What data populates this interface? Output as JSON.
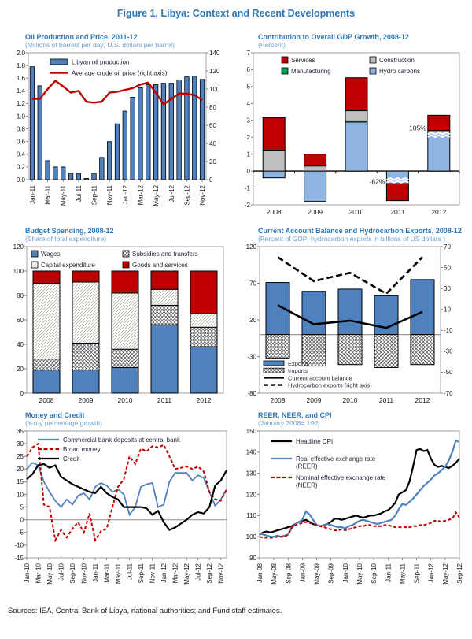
{
  "page": {
    "title": "Figure 1. Libya: Context and Recent Developments",
    "source_note": "Sources: IEA, Central Bank of Libya, national authorities; and Fund staff estimates."
  },
  "colors": {
    "title_blue": "#2E75B6",
    "subtitle_blue": "#6FA0D0",
    "steel_blue": "#4E81BD",
    "light_blue": "#8EB4E3",
    "red": "#C00000",
    "gray": "#BFBFBF",
    "green": "#00A550",
    "frame_gray": "#A6A6A6"
  },
  "chart_data": [
    {
      "id": "oil",
      "type": "bar-line",
      "title": "Oil Production and Price, 2011-12",
      "subtitle": "(Millions of barrels per day; U.S. dollars per barrel)",
      "n_points": 23,
      "tick_every": 2,
      "x_tick_labels": [
        "Jan-11",
        "Mar-11",
        "May-11",
        "Jul-11",
        "Sep-11",
        "Nov-11",
        "Jan-12",
        "Mar-12",
        "May-12",
        "Jul-12",
        "Sep-12",
        "Nov-12"
      ],
      "bars": {
        "name": "Libyan oil production",
        "values": [
          1.78,
          1.48,
          0.3,
          0.2,
          0.2,
          0.1,
          0.1,
          0.02,
          0.1,
          0.35,
          0.6,
          0.88,
          1.08,
          1.3,
          1.45,
          1.5,
          1.5,
          1.52,
          1.52,
          1.57,
          1.62,
          1.63,
          1.58
        ]
      },
      "line": {
        "name": "Average crude oil price (right axis)",
        "axis": "right",
        "values": [
          89,
          89,
          100,
          109,
          103,
          96,
          98,
          86,
          85,
          86,
          96,
          97,
          99,
          101,
          105,
          107,
          96,
          83,
          89,
          95,
          95,
          93,
          88
        ]
      },
      "left_axis": {
        "min": 0,
        "max": 2,
        "step": 0.2,
        "dec": 1
      },
      "right_axis": {
        "min": 0,
        "max": 140,
        "step": 20,
        "dec": 0
      }
    },
    {
      "id": "gdp",
      "type": "stacked-bar",
      "title": "Contribution to Overall GDP Growth, 2008-12",
      "subtitle": "(Percent)",
      "categories": [
        "2008",
        "2009",
        "2010",
        "2011",
        "2012"
      ],
      "series": [
        {
          "name": "Hydro carbons",
          "style": "#8EB4E3",
          "values": [
            -0.4,
            -1.8,
            2.9,
            -0.75,
            2.4
          ]
        },
        {
          "name": "Manufacturing",
          "style": "#00A550",
          "values": [
            0,
            0,
            0.07,
            0,
            0
          ]
        },
        {
          "name": "Construction",
          "style": "#BFBFBF",
          "values": [
            1.2,
            0.3,
            0.6,
            0,
            0
          ]
        },
        {
          "name": "Services",
          "style": "#C00000",
          "values": [
            1.95,
            0.7,
            1.95,
            -1.0,
            0.9
          ]
        }
      ],
      "annotations": [
        {
          "ci": 3,
          "y": -0.62,
          "text": "-62%"
        },
        {
          "ci": 4,
          "y": 2.55,
          "text": "105%"
        }
      ],
      "breaks": [
        {
          "ci": 3,
          "y": -0.52
        },
        {
          "ci": 4,
          "y": 2.18
        }
      ],
      "y_axis": {
        "min": -2,
        "max": 7,
        "step": 1,
        "dec": 0
      }
    },
    {
      "id": "budget",
      "type": "stacked-bar",
      "title": "Budget Spending, 2008-12",
      "subtitle": "(Share of total expenditure)",
      "categories": [
        "2008",
        "2009",
        "2010",
        "2011",
        "2012"
      ],
      "series": [
        {
          "name": "Wages",
          "style": "solid-blue",
          "values": [
            19,
            19,
            21,
            56,
            38
          ]
        },
        {
          "name": "Subsidies and transfers",
          "style": "crosshatch",
          "values": [
            9,
            22,
            15,
            16,
            16
          ]
        },
        {
          "name": "Capital expenditure",
          "style": "light-hatch",
          "values": [
            62,
            50,
            46,
            13,
            11
          ]
        },
        {
          "name": "Goods and services",
          "style": "solid-red",
          "values": [
            10,
            9,
            18,
            15,
            35
          ]
        }
      ],
      "y_axis": {
        "min": 0,
        "max": 120,
        "step": 20,
        "dec": 0
      }
    },
    {
      "id": "cab",
      "type": "bars-lines",
      "title": "Current Account Balance and Hydrocarbon Exports, 2008-12",
      "subtitle": "(Percent of GDP; hydrocarbon exports in billions of US dollars )",
      "categories": [
        "2008",
        "2009",
        "2010",
        "2011",
        "2012"
      ],
      "bars": [
        {
          "name": "Exports",
          "style": "solid-blue",
          "values": [
            71,
            59,
            62,
            53,
            75
          ]
        },
        {
          "name": "Imports",
          "style": "crosshatch",
          "values": [
            -32,
            -43,
            -41,
            -45,
            -41
          ]
        }
      ],
      "lines": [
        {
          "name": "Current account balance",
          "style": "solid",
          "axis": "left",
          "values": [
            40,
            14,
            19,
            9,
            31
          ]
        },
        {
          "name": "Hydrocarbon exports (right axis)",
          "style": "dashed",
          "axis": "right",
          "values": [
            60,
            37,
            45,
            25,
            60
          ]
        }
      ],
      "left_axis": {
        "min": -80,
        "max": 120,
        "step": 50,
        "dec": 0
      },
      "right_axis": {
        "min": -70,
        "max": 70,
        "step": 20,
        "dec": 0
      }
    },
    {
      "id": "money",
      "type": "multi-line",
      "title": "Money and Credit",
      "subtitle": "(Y-o-y percentage growth)",
      "n_points": 36,
      "tick_every": 2,
      "x_tick_labels": [
        "Jan-10",
        "Mar-10",
        "May-10",
        "Jul-10",
        "Sep-10",
        "Nov-10",
        "Jan-11",
        "Mar-11",
        "May-11",
        "Jul-11",
        "Sep-11",
        "Nov-11",
        "Jan-12",
        "Mar-12",
        "May-12",
        "Jul-12",
        "Sep-12",
        "Nov-12"
      ],
      "series": [
        {
          "name": "Commercial bank deposits at central bank",
          "color": "#4E81BD",
          "style": "solid",
          "width": 1.8,
          "values": [
            20,
            22.5,
            21.5,
            15,
            11,
            7.5,
            5,
            8,
            6,
            9.5,
            10.5,
            8,
            13,
            14.5,
            13.5,
            11,
            12,
            10,
            2,
            5,
            13,
            14,
            14.5,
            5,
            6,
            15,
            18.5,
            18.5,
            18.5,
            15.5,
            17.5,
            16.5,
            11,
            5.5,
            8,
            12
          ]
        },
        {
          "name": "Broad money",
          "color": "#C00000",
          "style": "dashed",
          "width": 2,
          "values": [
            25,
            28.5,
            30,
            6,
            5,
            -8,
            -4,
            -7,
            -3.5,
            -1,
            -5,
            2.5,
            -8,
            -4.5,
            -3.5,
            5,
            13,
            16,
            25,
            22,
            28,
            27,
            29,
            28.5,
            29.5,
            25,
            20,
            20.5,
            21,
            20,
            21,
            19,
            11,
            8,
            7.5,
            12
          ]
        },
        {
          "name": "Credit",
          "color": "#000000",
          "style": "solid",
          "width": 2.2,
          "values": [
            16,
            18,
            21.5,
            22,
            20.5,
            21.5,
            17,
            15.5,
            14,
            13,
            12,
            11,
            10.5,
            13,
            10.5,
            9,
            8,
            5,
            5,
            5,
            5,
            4.5,
            2,
            3.5,
            -1,
            -4,
            -3,
            -1.5,
            0,
            2,
            3,
            2.5,
            5,
            13.5,
            15.5,
            19.5
          ]
        }
      ],
      "y_axis": {
        "min": -15,
        "max": 35,
        "step": 5,
        "dec": 0
      },
      "zero_line": true
    },
    {
      "id": "reer",
      "type": "multi-line",
      "title": "REER, NEER, and CPI",
      "subtitle": "(January 2008= 100)",
      "n_points": 57,
      "tick_every": 4,
      "x_tick_labels": [
        "Jan-08",
        "May-08",
        "Sep-08",
        "Jan-09",
        "May-09",
        "Sep-09",
        "Jan-10",
        "May-10",
        "Sep-10",
        "Jan-11",
        "May-11",
        "Sep-11",
        "Jan-12",
        "May-12",
        "Sep-12"
      ],
      "series": [
        {
          "name": "Headline CPI",
          "color": "#000000",
          "style": "solid",
          "width": 2.2,
          "values": [
            101,
            102,
            102.5,
            102,
            102.5,
            103,
            103.5,
            104,
            104.5,
            105,
            106,
            107,
            107.5,
            108,
            107,
            106,
            105.5,
            105,
            105.5,
            106,
            107,
            108.5,
            108.5,
            108,
            108.5,
            109,
            109.5,
            110,
            109.5,
            109,
            109.5,
            110,
            110,
            110.5,
            111,
            112,
            112.5,
            114,
            116,
            120,
            121,
            122,
            126,
            133,
            141,
            141.5,
            140.5,
            141,
            137,
            134,
            133,
            133.5,
            133,
            132.5,
            133.5,
            135,
            137
          ]
        },
        {
          "name": "Real effective exchange rate\n(REER)",
          "color": "#4E81BD",
          "style": "solid",
          "width": 2.2,
          "values": [
            101.5,
            101,
            100.5,
            100,
            100,
            100.5,
            100,
            100.5,
            101,
            104,
            106,
            107,
            108,
            112,
            110.5,
            108,
            105.5,
            105,
            105.5,
            106,
            105.5,
            105,
            104.5,
            104.5,
            104,
            105,
            105.5,
            106.5,
            107.5,
            108,
            107.5,
            107,
            106.5,
            106,
            106.5,
            107,
            107.5,
            108,
            110,
            113,
            115.5,
            115,
            116.5,
            118,
            120,
            122,
            124,
            125.5,
            127,
            129,
            130,
            131.5,
            133,
            136,
            140,
            145.5,
            144.8
          ]
        },
        {
          "name": "Nominal effective exchange rate\n(NEER)",
          "color": "#C00000",
          "style": "dashed",
          "width": 2,
          "values": [
            100,
            99.5,
            99.5,
            99.5,
            99.5,
            100,
            100,
            100,
            101,
            104.5,
            105.5,
            106,
            106.5,
            107,
            106.5,
            106,
            105.5,
            105,
            104.5,
            104,
            103.5,
            103,
            103,
            103.5,
            103,
            103.5,
            104,
            104.5,
            105,
            105,
            105.5,
            105.5,
            105,
            105,
            105,
            105.5,
            105.5,
            105,
            104.5,
            104.5,
            104.5,
            104.5,
            104.5,
            105,
            105,
            105.5,
            105.5,
            106,
            106.5,
            107.5,
            107.5,
            107,
            107.5,
            108,
            108.5,
            111.5,
            109
          ]
        }
      ],
      "y_axis": {
        "min": 90,
        "max": 150,
        "step": 10,
        "dec": 0
      },
      "zero_line": false
    }
  ]
}
